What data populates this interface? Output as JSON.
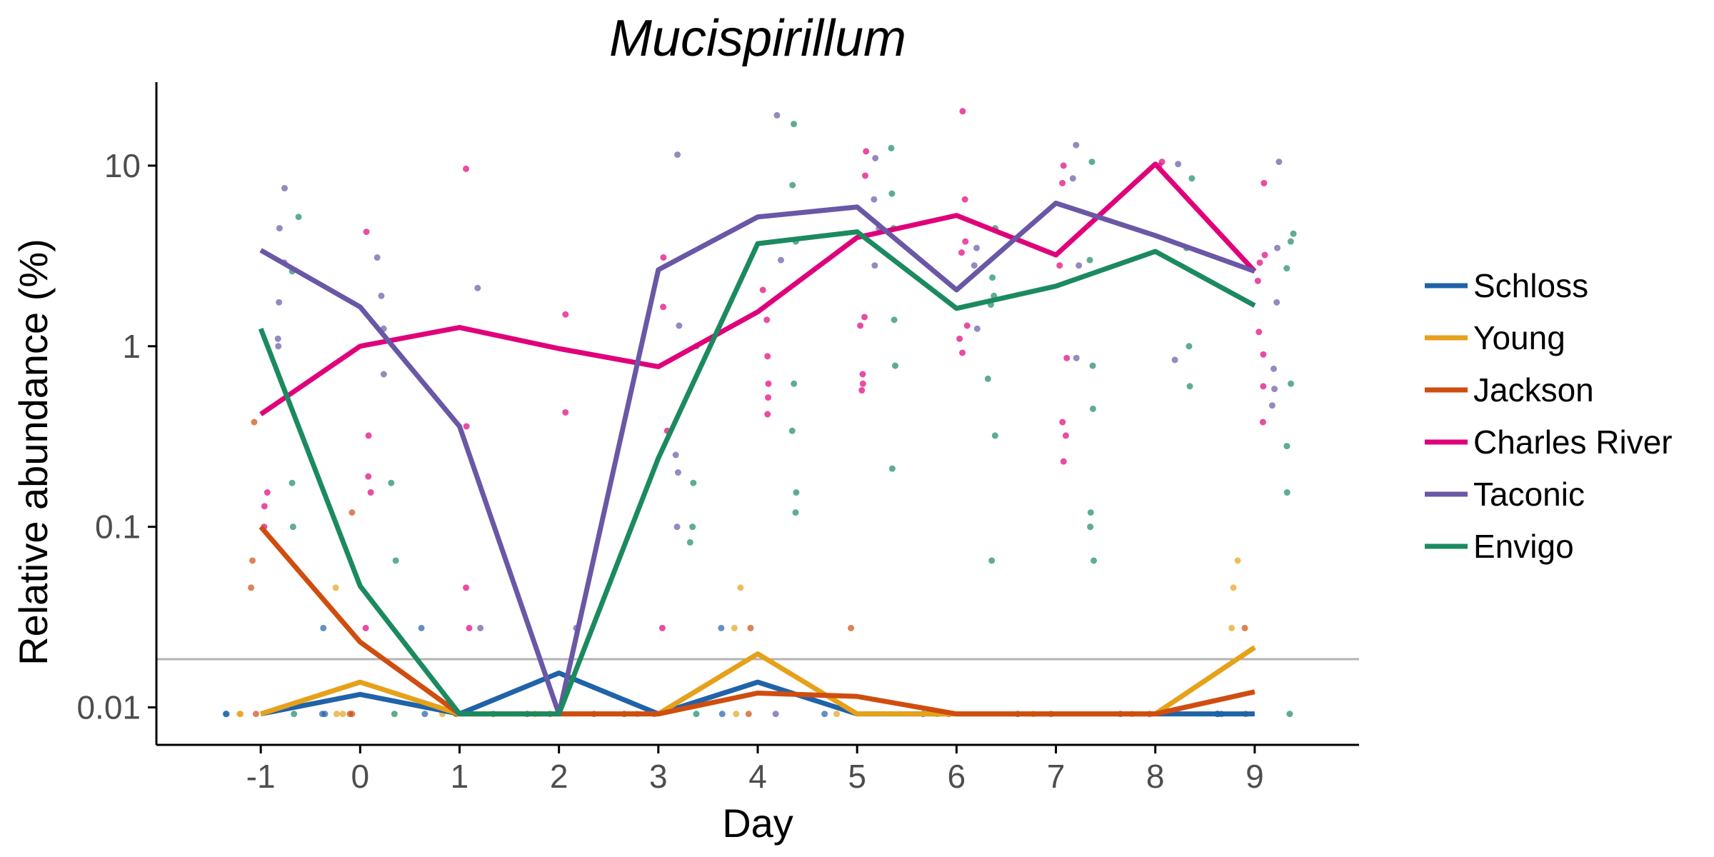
{
  "chart_data": {
    "type": "line",
    "title": "Mucispirillum",
    "xlabel": "Day",
    "ylabel": "Relative abundance (%)",
    "x": [
      -1,
      0,
      1,
      2,
      3,
      4,
      5,
      6,
      7,
      8,
      9
    ],
    "xlim": [
      -2.05,
      10.05
    ],
    "ylim": [
      0.0062,
      29
    ],
    "y_scale": "log",
    "y_ticks": [
      0.01,
      0.1,
      1,
      10
    ],
    "y_tick_labels": [
      "0.01",
      "0.1",
      "1",
      "10"
    ],
    "x_tick_labels": [
      "-1",
      "0",
      "1",
      "2",
      "3",
      "4",
      "5",
      "6",
      "7",
      "8",
      "9"
    ],
    "grid": false,
    "legend_position": "right",
    "detection_limit": 0.0185,
    "detection_limit_color": "#b3b3b3",
    "series": [
      {
        "name": "Schloss",
        "color": "#1f63a8",
        "values": [
          0.0092,
          0.0118,
          0.0092,
          0.0155,
          0.0092,
          0.0138,
          0.0092,
          0.0092,
          0.0092,
          0.0092,
          0.0092
        ],
        "points": [
          [
            -1,
            0.0092
          ],
          [
            -1,
            0.0092
          ],
          [
            0,
            0.0092
          ],
          [
            0,
            0.0275
          ],
          [
            0,
            0.0092
          ],
          [
            1,
            0.0092
          ],
          [
            1,
            0.0275
          ],
          [
            2,
            0.0092
          ],
          [
            3,
            0.0092
          ],
          [
            4,
            0.0092
          ],
          [
            4,
            0.0275
          ],
          [
            5,
            0.0092
          ],
          [
            6,
            0.0092
          ],
          [
            7,
            0.0092
          ],
          [
            8,
            0.0092
          ],
          [
            9,
            0.0092
          ],
          [
            9,
            0.0092
          ],
          [
            9,
            0.0092
          ]
        ]
      },
      {
        "name": "Young",
        "color": "#e6a11a",
        "values": [
          0.0092,
          0.0138,
          0.0092,
          0.0092,
          0.0092,
          0.0198,
          0.0092,
          0.0092,
          0.0092,
          0.0092,
          0.0215
        ],
        "points": [
          [
            -1,
            0.0092
          ],
          [
            -1,
            0.0092
          ],
          [
            0,
            0.0092
          ],
          [
            0,
            0.046
          ],
          [
            0,
            0.0092
          ],
          [
            1,
            0.0092
          ],
          [
            2,
            0.0092
          ],
          [
            3,
            0.0092
          ],
          [
            4,
            0.046
          ],
          [
            4,
            0.0275
          ],
          [
            4,
            0.0092
          ],
          [
            5,
            0.0092
          ],
          [
            6,
            0.0092
          ],
          [
            7,
            0.0092
          ],
          [
            8,
            0.0092
          ],
          [
            9,
            0.065
          ],
          [
            9,
            0.046
          ],
          [
            9,
            0.0275
          ]
        ]
      },
      {
        "name": "Jackson",
        "color": "#cf4d0f",
        "values": [
          0.1,
          0.023,
          0.0092,
          0.0092,
          0.0092,
          0.012,
          0.0115,
          0.0092,
          0.0092,
          0.0092,
          0.0122
        ],
        "points": [
          [
            -1,
            0.38
          ],
          [
            -1,
            0.065
          ],
          [
            -1,
            0.046
          ],
          [
            -1,
            0.0092
          ],
          [
            0,
            0.12
          ],
          [
            0,
            0.0092
          ],
          [
            0,
            0.0092
          ],
          [
            1,
            0.0092
          ],
          [
            2,
            0.0092
          ],
          [
            3,
            0.0092
          ],
          [
            4,
            0.0275
          ],
          [
            4,
            0.0092
          ],
          [
            5,
            0.0275
          ],
          [
            6,
            0.0092
          ],
          [
            7,
            0.0092
          ],
          [
            8,
            0.0092
          ],
          [
            9,
            0.0275
          ],
          [
            9,
            0.0092
          ]
        ]
      },
      {
        "name": "Charles River",
        "color": "#e0007a",
        "values": [
          0.42,
          1.0,
          1.27,
          0.97,
          0.77,
          1.55,
          4.0,
          5.3,
          3.2,
          10.2,
          2.6
        ],
        "points": [
          [
            -1,
            0.155
          ],
          [
            -1,
            0.13
          ],
          [
            -1,
            0.1
          ],
          [
            0,
            4.3
          ],
          [
            0,
            0.32
          ],
          [
            0,
            0.19
          ],
          [
            0,
            0.155
          ],
          [
            0,
            0.0275
          ],
          [
            1,
            9.6
          ],
          [
            1,
            0.36
          ],
          [
            1,
            0.046
          ],
          [
            1,
            0.0275
          ],
          [
            2,
            1.5
          ],
          [
            2,
            0.43
          ],
          [
            3,
            3.1
          ],
          [
            3,
            1.65
          ],
          [
            3,
            0.34
          ],
          [
            3,
            0.0275
          ],
          [
            4,
            2.05
          ],
          [
            4,
            1.4
          ],
          [
            4,
            0.88
          ],
          [
            4,
            0.62
          ],
          [
            4,
            0.52
          ],
          [
            4,
            0.42
          ],
          [
            5,
            12.0
          ],
          [
            5,
            8.8
          ],
          [
            5,
            1.45
          ],
          [
            5,
            1.3
          ],
          [
            5,
            0.7
          ],
          [
            5,
            0.62
          ],
          [
            5,
            0.57
          ],
          [
            6,
            20.0
          ],
          [
            6,
            6.5
          ],
          [
            6,
            3.8
          ],
          [
            6,
            3.3
          ],
          [
            6,
            1.3
          ],
          [
            6,
            1.1
          ],
          [
            6,
            0.92
          ],
          [
            7,
            10.0
          ],
          [
            7,
            8.0
          ],
          [
            7,
            2.8
          ],
          [
            7,
            0.86
          ],
          [
            7,
            0.38
          ],
          [
            7,
            0.32
          ],
          [
            7,
            0.23
          ],
          [
            8,
            10.5
          ],
          [
            8,
            10.0
          ],
          [
            9,
            8.0
          ],
          [
            9,
            3.2
          ],
          [
            9,
            2.9
          ],
          [
            9,
            2.3
          ],
          [
            9,
            1.2
          ],
          [
            9,
            0.9
          ],
          [
            9,
            0.6
          ],
          [
            9,
            0.38
          ]
        ]
      },
      {
        "name": "Taconic",
        "color": "#6a57a5",
        "values": [
          3.4,
          1.65,
          0.36,
          0.0092,
          2.65,
          5.2,
          5.9,
          2.05,
          6.2,
          4.1,
          2.6
        ],
        "points": [
          [
            -1,
            7.5
          ],
          [
            -1,
            4.5
          ],
          [
            -1,
            2.9
          ],
          [
            -1,
            1.75
          ],
          [
            -1,
            1.1
          ],
          [
            -1,
            1.0
          ],
          [
            0,
            3.1
          ],
          [
            0,
            1.9
          ],
          [
            0,
            1.25
          ],
          [
            0,
            0.7
          ],
          [
            1,
            2.1
          ],
          [
            1,
            0.0275
          ],
          [
            2,
            0.0275
          ],
          [
            3,
            11.5
          ],
          [
            3,
            1.3
          ],
          [
            3,
            0.25
          ],
          [
            3,
            0.2
          ],
          [
            3,
            0.1
          ],
          [
            4,
            19.0
          ],
          [
            4,
            3.0
          ],
          [
            4,
            0.0092
          ],
          [
            5,
            11.0
          ],
          [
            5,
            6.5
          ],
          [
            5,
            4.5
          ],
          [
            5,
            2.8
          ],
          [
            6,
            3.5
          ],
          [
            6,
            2.8
          ],
          [
            6,
            1.25
          ],
          [
            7,
            13.0
          ],
          [
            7,
            8.5
          ],
          [
            7,
            2.8
          ],
          [
            7,
            0.86
          ],
          [
            8,
            10.2
          ],
          [
            8,
            0.84
          ],
          [
            9,
            10.5
          ],
          [
            9,
            3.5
          ],
          [
            9,
            1.75
          ],
          [
            9,
            0.75
          ],
          [
            9,
            0.58
          ],
          [
            9,
            0.47
          ]
        ]
      },
      {
        "name": "Envigo",
        "color": "#1b8a5f",
        "values": [
          1.25,
          0.047,
          0.0092,
          0.0092,
          0.24,
          3.7,
          4.3,
          1.62,
          2.15,
          3.35,
          1.68
        ],
        "points": [
          [
            -1,
            5.2
          ],
          [
            -1,
            2.6
          ],
          [
            -1,
            0.175
          ],
          [
            -1,
            0.1
          ],
          [
            -1,
            0.0092
          ],
          [
            0,
            0.175
          ],
          [
            0,
            0.065
          ],
          [
            0,
            0.0092
          ],
          [
            1,
            0.0092
          ],
          [
            2,
            0.0092
          ],
          [
            3,
            1.0
          ],
          [
            3,
            0.175
          ],
          [
            3,
            0.1
          ],
          [
            3,
            0.082
          ],
          [
            3,
            0.0092
          ],
          [
            4,
            17.0
          ],
          [
            4,
            7.8
          ],
          [
            4,
            3.8
          ],
          [
            4,
            0.62
          ],
          [
            4,
            0.34
          ],
          [
            4,
            0.155
          ],
          [
            4,
            0.12
          ],
          [
            5,
            12.5
          ],
          [
            5,
            7.0
          ],
          [
            5,
            4.5
          ],
          [
            5,
            1.4
          ],
          [
            5,
            0.78
          ],
          [
            5,
            0.21
          ],
          [
            6,
            4.5
          ],
          [
            6,
            2.4
          ],
          [
            6,
            1.9
          ],
          [
            6,
            1.7
          ],
          [
            6,
            0.66
          ],
          [
            6,
            0.32
          ],
          [
            6,
            0.065
          ],
          [
            7,
            10.5
          ],
          [
            7,
            3.0
          ],
          [
            7,
            0.78
          ],
          [
            7,
            0.45
          ],
          [
            7,
            0.12
          ],
          [
            7,
            0.1
          ],
          [
            7,
            0.065
          ],
          [
            8,
            8.5
          ],
          [
            8,
            3.5
          ],
          [
            8,
            1.0
          ],
          [
            8,
            0.6
          ],
          [
            9,
            4.2
          ],
          [
            9,
            3.8
          ],
          [
            9,
            2.7
          ],
          [
            9,
            0.62
          ],
          [
            9,
            0.28
          ],
          [
            9,
            0.155
          ],
          [
            9,
            0.0092
          ]
        ]
      }
    ]
  }
}
